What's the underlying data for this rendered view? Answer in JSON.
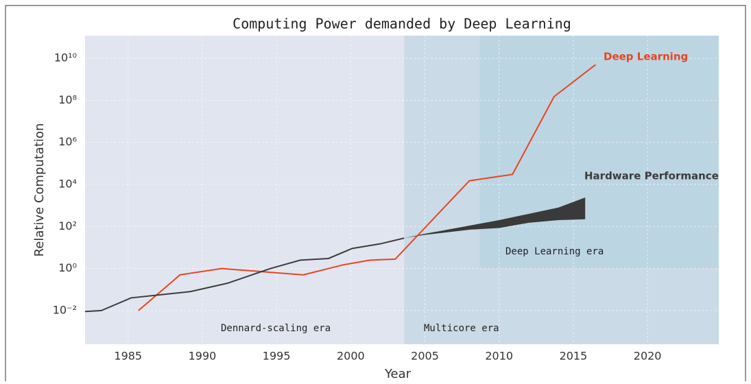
{
  "chart_data": {
    "type": "line",
    "title": "Computing Power demanded by Deep Learning",
    "x_label": "Year",
    "y_label": "Relative Computation",
    "log_y": true,
    "grid": true,
    "xlim": [
      1982.1,
      2024.8
    ],
    "ylim": [
      0.00025,
      120000000000
    ],
    "xticks": [
      1985,
      1990,
      1995,
      2000,
      2005,
      2010,
      2015,
      2020
    ],
    "yticks": [
      {
        "value": 0.01,
        "label": "10⁻²"
      },
      {
        "value": 1,
        "label": "10⁰"
      },
      {
        "value": 100,
        "label": "10²"
      },
      {
        "value": 10000,
        "label": "10⁴"
      },
      {
        "value": 1000000,
        "label": "10⁶"
      },
      {
        "value": 100000000,
        "label": "10⁸"
      },
      {
        "value": 10000000000,
        "label": "10¹⁰"
      }
    ],
    "regions": [
      {
        "name": "Dennard-scaling era",
        "x": [
          1982.1,
          2003.6
        ],
        "color": "#e1e5ef"
      },
      {
        "name": "Multicore era",
        "x": [
          2003.6,
          2024.8
        ],
        "color": "#cbdae7"
      },
      {
        "name": "Deep Learning era",
        "x": [
          2008.7,
          2024.8
        ],
        "y": [
          1,
          120000000000
        ],
        "color": "#bcd5e3"
      }
    ],
    "series": [
      {
        "name": "Deep Learning",
        "color": "#e8441e",
        "x": [
          1985.7,
          1988.5,
          1991.3,
          1996.8,
          1999.5,
          2001.3,
          2003.0,
          2008.0,
          2010.9,
          2013.7,
          2016.5
        ],
        "values": [
          0.01,
          0.5,
          1,
          0.5,
          1.5,
          2.5,
          2.8,
          15000,
          30000,
          150000000,
          5000000000
        ]
      },
      {
        "name": "Hardware Performance",
        "color": "#3c3c3c",
        "x": [
          1982.1,
          1983.2,
          1985.2,
          1989.2,
          1991.7,
          1994.6,
          1996.6,
          1998.5,
          2000.1,
          2002.0,
          2003.6
        ],
        "values": [
          0.009,
          0.01,
          0.04,
          0.08,
          0.2,
          1,
          2.5,
          3,
          9,
          15,
          28
        ]
      }
    ],
    "band": {
      "name": "Hardware Performance",
      "color": "#3a3a3a",
      "x": [
        2003.6,
        2005,
        2008,
        2010,
        2012,
        2014,
        2015.8
      ],
      "lower": [
        28,
        40,
        70,
        85,
        150,
        200,
        220
      ],
      "upper": [
        28,
        45,
        110,
        200,
        400,
        800,
        2400
      ]
    }
  }
}
